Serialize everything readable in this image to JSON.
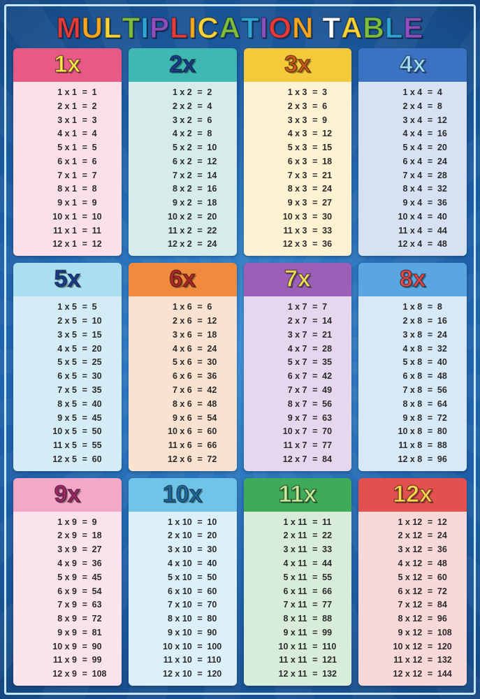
{
  "background": {
    "gradient_inner": "#3a8fd4",
    "gradient_mid": "#1e5fa8",
    "gradient_outer": "#15467f",
    "frame_border": "#c7e6ff"
  },
  "title": {
    "text": "MULTIPLICATION TABLE",
    "fontsize": 42,
    "letter_colors": [
      "#e63b3b",
      "#f5a623",
      "#f8d43a",
      "#7fbf3f",
      "#2fa5d8",
      "#8f4fc1",
      "#e63b3b",
      "#f5a623",
      "#f8d43a",
      "#7fbf3f",
      "#2fa5d8",
      "#8f4fc1",
      "#e63b3b",
      "#f5a623",
      "#ffffff",
      "#f8d43a",
      "#7fbf3f",
      "#2fa5d8",
      "#8f4fc1",
      "#e63b3b"
    ]
  },
  "grid": {
    "cols": 4,
    "rows": 3,
    "gap": 10
  },
  "text_color": "#2b2b2b",
  "row_fontsize": 12.5,
  "head_fontsize": 34,
  "tables": [
    {
      "n": 1,
      "label": "1x",
      "head_bg": "#e85a86",
      "head_fg": "#ffe84a",
      "body_bg": "#fbe0ea",
      "max": 12
    },
    {
      "n": 2,
      "label": "2x",
      "head_bg": "#3fb7b3",
      "head_fg": "#1a3d8f",
      "body_bg": "#d5ecea",
      "max": 12
    },
    {
      "n": 3,
      "label": "3x",
      "head_bg": "#f4c93a",
      "head_fg": "#cf5a18",
      "body_bg": "#fdf2d2",
      "max": 12
    },
    {
      "n": 4,
      "label": "4x",
      "head_bg": "#3b72c4",
      "head_fg": "#9fe0ff",
      "body_bg": "#d6e2f3",
      "max": 12
    },
    {
      "n": 5,
      "label": "5x",
      "head_bg": "#aadff2",
      "head_fg": "#1a3d8f",
      "body_bg": "#d4ecf5",
      "max": 12
    },
    {
      "n": 6,
      "label": "6x",
      "head_bg": "#f08a3c",
      "head_fg": "#b2272a",
      "body_bg": "#f9e2cf",
      "max": 12
    },
    {
      "n": 7,
      "label": "7x",
      "head_bg": "#9b5fb8",
      "head_fg": "#f4e15a",
      "body_bg": "#e6d7ee",
      "max": 12
    },
    {
      "n": 8,
      "label": "8x",
      "head_bg": "#5aa6e0",
      "head_fg": "#e24a4a",
      "body_bg": "#d7e9f6",
      "max": 12
    },
    {
      "n": 9,
      "label": "9x",
      "head_bg": "#f4a7c6",
      "head_fg": "#a0276a",
      "body_bg": "#fbe3ee",
      "max": 12
    },
    {
      "n": 10,
      "label": "10x",
      "head_bg": "#6fc4e8",
      "head_fg": "#1e6aa0",
      "body_bg": "#dcf0f9",
      "max": 12
    },
    {
      "n": 11,
      "label": "11x",
      "head_bg": "#3faa58",
      "head_fg": "#c7ef9a",
      "body_bg": "#d7edda",
      "max": 12
    },
    {
      "n": 12,
      "label": "12x",
      "head_bg": "#e35050",
      "head_fg": "#ffd850",
      "body_bg": "#f8d8d8",
      "max": 12
    }
  ]
}
